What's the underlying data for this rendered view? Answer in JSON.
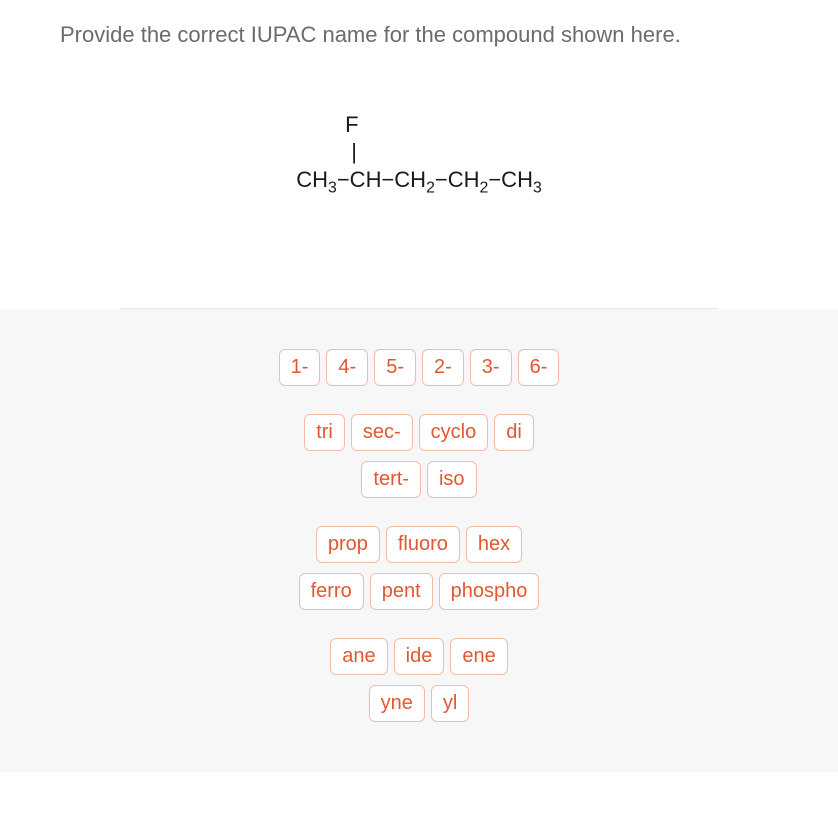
{
  "question": "Provide the correct IUPAC name for the compound shown here.",
  "structure": {
    "line1_f": "F",
    "line2_bond": "|",
    "line3_parts": [
      "CH",
      "3",
      "−CH−CH",
      "2",
      "−CH",
      "2",
      "−CH",
      "3"
    ]
  },
  "tile_groups": [
    {
      "spaced": false,
      "tiles": [
        "1-",
        "4-",
        "5-",
        "2-",
        "3-",
        "6-"
      ]
    },
    {
      "spaced": true,
      "tiles": [
        "tri",
        "sec-",
        "cyclo",
        "di"
      ]
    },
    {
      "spaced": false,
      "tiles": [
        "tert-",
        "iso"
      ]
    },
    {
      "spaced": true,
      "tiles": [
        "prop",
        "fluoro",
        "hex"
      ]
    },
    {
      "spaced": false,
      "tiles": [
        "ferro",
        "pent",
        "phospho"
      ]
    },
    {
      "spaced": true,
      "tiles": [
        "ane",
        "ide",
        "ene"
      ]
    },
    {
      "spaced": false,
      "tiles": [
        "yne",
        "yl"
      ]
    }
  ],
  "colors": {
    "question_text": "#6b6b6b",
    "tile_text": "#e2572f",
    "tile_border": "#f3bca6",
    "tile_bg": "#ffffff",
    "bottom_bg": "#f7f7f7",
    "divider": "#e8e8e8"
  }
}
